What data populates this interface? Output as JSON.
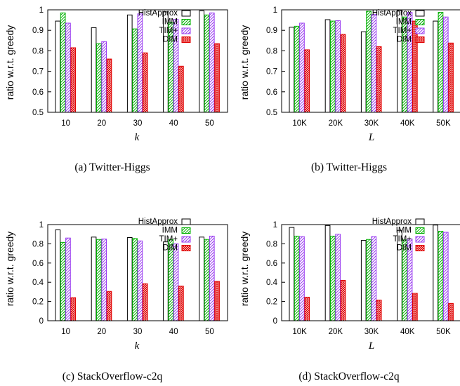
{
  "legend_labels": [
    "HistApprox",
    "IMM",
    "TIM+",
    "DIM"
  ],
  "series_styles": {
    "HistApprox": {
      "fill": "#ffffff",
      "stroke": "#000000",
      "pattern": "none"
    },
    "IMM": {
      "fill": "#ffffff",
      "stroke": "#00b000",
      "pattern": "forward-hatch"
    },
    "TIM+": {
      "fill": "#ffffff",
      "stroke": "#9a3cf0",
      "pattern": "forward-hatch"
    },
    "DIM": {
      "fill": "#ffffff",
      "stroke": "#e00000",
      "pattern": "cross-hatch"
    }
  },
  "chart_data": [
    {
      "type": "bar",
      "caption": "(a) Twitter-Higgs",
      "ylabel": "ratio w.r.t. greedy",
      "xlabel": "k",
      "ylim": [
        0.5,
        1.0
      ],
      "yticks": [
        "0.5",
        "0.6",
        "0.7",
        "0.8",
        "0.9",
        "1"
      ],
      "ytick_values": [
        0.5,
        0.6,
        0.7,
        0.8,
        0.9,
        1.0
      ],
      "categories": [
        "10",
        "20",
        "30",
        "40",
        "50"
      ],
      "series": [
        {
          "name": "HistApprox",
          "values": [
            0.945,
            0.913,
            0.975,
            0.99,
            0.995
          ]
        },
        {
          "name": "IMM",
          "values": [
            0.985,
            0.835,
            0.907,
            0.94,
            0.975
          ]
        },
        {
          "name": "TIM+",
          "values": [
            0.935,
            0.845,
            0.98,
            0.953,
            0.985
          ]
        },
        {
          "name": "DIM",
          "values": [
            0.815,
            0.76,
            0.79,
            0.725,
            0.835
          ]
        }
      ]
    },
    {
      "type": "bar",
      "caption": "(b) Twitter-Higgs",
      "ylabel": "ratio w.r.t. greedy",
      "xlabel": "L",
      "ylim": [
        0.5,
        1.0
      ],
      "yticks": [
        "0.5",
        "0.6",
        "0.7",
        "0.8",
        "0.9",
        "1"
      ],
      "ytick_values": [
        0.5,
        0.6,
        0.7,
        0.8,
        0.9,
        1.0
      ],
      "categories": [
        "10K",
        "20K",
        "30K",
        "40K",
        "50K"
      ],
      "series": [
        {
          "name": "HistApprox",
          "values": [
            0.915,
            0.952,
            0.893,
            0.997,
            0.945
          ]
        },
        {
          "name": "IMM",
          "values": [
            0.92,
            0.945,
            0.993,
            0.965,
            0.988
          ]
        },
        {
          "name": "TIM+",
          "values": [
            0.935,
            0.947,
            0.977,
            0.987,
            0.965
          ]
        },
        {
          "name": "DIM",
          "values": [
            0.805,
            0.88,
            0.82,
            0.945,
            0.838
          ]
        }
      ]
    },
    {
      "type": "bar",
      "caption": "(c) StackOverflow-c2q",
      "ylabel": "ratio w.r.t. greedy",
      "xlabel": "k",
      "ylim": [
        0,
        1.0
      ],
      "yticks": [
        "0",
        "0.2",
        "0.4",
        "0.6",
        "0.8",
        "1"
      ],
      "ytick_values": [
        0,
        0.2,
        0.4,
        0.6,
        0.8,
        1.0
      ],
      "categories": [
        "10",
        "20",
        "30",
        "40",
        "50"
      ],
      "series": [
        {
          "name": "HistApprox",
          "values": [
            0.945,
            0.87,
            0.865,
            0.82,
            0.87
          ]
        },
        {
          "name": "IMM",
          "values": [
            0.815,
            0.845,
            0.855,
            0.845,
            0.845
          ]
        },
        {
          "name": "TIM+",
          "values": [
            0.86,
            0.85,
            0.83,
            0.8,
            0.88
          ]
        },
        {
          "name": "DIM",
          "values": [
            0.24,
            0.305,
            0.385,
            0.36,
            0.41
          ]
        }
      ]
    },
    {
      "type": "bar",
      "caption": "(d) StackOverflow-c2q",
      "ylabel": "ratio w.r.t. greedy",
      "xlabel": "L",
      "ylim": [
        0,
        1.0
      ],
      "yticks": [
        "0",
        "0.2",
        "0.4",
        "0.6",
        "0.8",
        "1"
      ],
      "ytick_values": [
        0,
        0.2,
        0.4,
        0.6,
        0.8,
        1.0
      ],
      "categories": [
        "10K",
        "20K",
        "30K",
        "40K",
        "50K"
      ],
      "series": [
        {
          "name": "HistApprox",
          "values": [
            0.97,
            0.99,
            0.835,
            0.94,
            0.995
          ]
        },
        {
          "name": "IMM",
          "values": [
            0.88,
            0.88,
            0.845,
            0.84,
            0.93
          ]
        },
        {
          "name": "TIM+",
          "values": [
            0.875,
            0.9,
            0.875,
            0.85,
            0.92
          ]
        },
        {
          "name": "DIM",
          "values": [
            0.245,
            0.42,
            0.215,
            0.285,
            0.18
          ]
        }
      ]
    }
  ]
}
